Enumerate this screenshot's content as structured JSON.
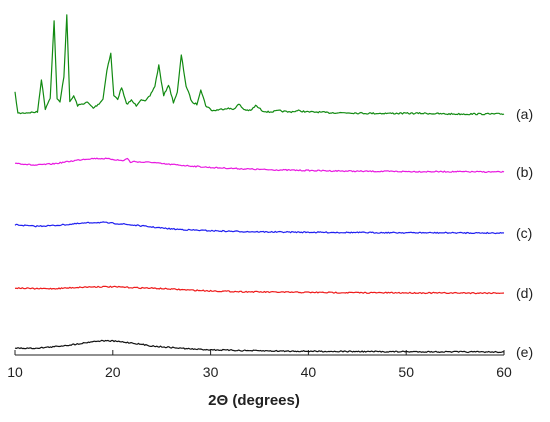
{
  "chart_data": {
    "type": "line",
    "xlabel": "2Θ (degrees)",
    "ylabel": "",
    "xlim": [
      10,
      60
    ],
    "xticks": [
      "10",
      "20",
      "30",
      "40",
      "50",
      "60"
    ],
    "grid": false,
    "legend": "none",
    "series": [
      {
        "name": "(a)",
        "color": "#128a12",
        "baseline": 0.92,
        "x": [
          10,
          10.3,
          12.3,
          12.7,
          13.1,
          13.6,
          14.0,
          14.3,
          14.6,
          15.0,
          15.3,
          15.6,
          16.0,
          16.4,
          16.8,
          17.4,
          18.0,
          18.6,
          19.0,
          19.4,
          19.8,
          20.1,
          20.5,
          20.9,
          21.4,
          21.9,
          22.4,
          22.9,
          23.3,
          23.8,
          24.3,
          24.7,
          25.2,
          25.7,
          26.2,
          26.6,
          27.0,
          27.5,
          28.1,
          28.6,
          29.0,
          29.5,
          30.2,
          31.0,
          31.7,
          32.3,
          32.9,
          33.4,
          34.1,
          34.6,
          35.3,
          36.0,
          37.0,
          38.0,
          39.0,
          40.0,
          41.0,
          42.0,
          44.0,
          46.0,
          48.0,
          50.0,
          52.0,
          54.0,
          56.0,
          58.0,
          60.0
        ],
        "y": [
          1.1,
          0.78,
          0.8,
          1.3,
          0.85,
          1.02,
          2.2,
          1.0,
          0.95,
          1.35,
          2.3,
          0.95,
          1.05,
          0.9,
          0.92,
          0.95,
          0.86,
          0.93,
          1.0,
          1.45,
          1.7,
          1.05,
          1.0,
          1.18,
          0.92,
          0.98,
          0.9,
          1.0,
          0.96,
          1.05,
          1.2,
          1.52,
          1.05,
          1.22,
          0.95,
          1.1,
          1.68,
          1.2,
          0.95,
          0.92,
          1.15,
          0.9,
          0.82,
          0.84,
          0.86,
          0.84,
          0.92,
          0.84,
          0.82,
          0.9,
          0.82,
          0.8,
          0.82,
          0.8,
          0.82,
          0.8,
          0.8,
          0.79,
          0.79,
          0.78,
          0.78,
          0.78,
          0.78,
          0.77,
          0.77,
          0.77,
          0.77
        ]
      },
      {
        "name": "(b)",
        "color": "#e81ae0",
        "baseline": 0.64,
        "x": [
          10,
          12,
          14,
          16,
          17,
          18,
          19,
          20,
          21,
          21.5,
          21.8,
          22.2,
          23,
          24,
          25,
          26,
          28,
          30,
          33,
          36,
          40,
          45,
          50,
          55,
          60
        ],
        "y": [
          0.66,
          0.645,
          0.655,
          0.675,
          0.685,
          0.69,
          0.69,
          0.685,
          0.675,
          0.69,
          0.665,
          0.67,
          0.665,
          0.665,
          0.655,
          0.65,
          0.64,
          0.63,
          0.622,
          0.615,
          0.61,
          0.605,
          0.603,
          0.602,
          0.6
        ]
      },
      {
        "name": "(c)",
        "color": "#1f1ff0",
        "baseline": 0.35,
        "x": [
          10,
          12,
          14,
          16,
          17,
          18,
          19,
          20,
          21,
          22,
          23,
          24,
          25,
          26,
          28,
          30,
          33,
          36,
          40,
          45,
          50,
          55,
          60
        ],
        "y": [
          0.38,
          0.37,
          0.375,
          0.385,
          0.39,
          0.395,
          0.395,
          0.39,
          0.385,
          0.378,
          0.372,
          0.365,
          0.358,
          0.352,
          0.345,
          0.34,
          0.335,
          0.332,
          0.33,
          0.328,
          0.327,
          0.326,
          0.325
        ]
      },
      {
        "name": "(d)",
        "color": "#ee1a1a",
        "baseline": 0.14,
        "x": [
          10,
          12,
          14,
          16,
          17,
          18,
          19,
          20,
          21,
          22,
          24,
          26,
          28,
          30,
          33,
          36,
          40,
          45,
          50,
          55,
          60
        ],
        "y": [
          0.16,
          0.155,
          0.155,
          0.162,
          0.165,
          0.167,
          0.168,
          0.167,
          0.165,
          0.162,
          0.158,
          0.152,
          0.145,
          0.14,
          0.135,
          0.132,
          0.13,
          0.128,
          0.127,
          0.126,
          0.126
        ]
      },
      {
        "name": "(e)",
        "color": "#111111",
        "baseline": 0.0,
        "x": [
          10,
          12,
          14,
          16,
          17,
          18,
          19,
          20,
          21,
          22,
          23,
          24,
          26,
          28,
          30,
          33,
          36,
          40,
          45,
          50,
          55,
          60
        ],
        "y": [
          0.03,
          0.03,
          0.04,
          0.055,
          0.065,
          0.075,
          0.08,
          0.078,
          0.072,
          0.065,
          0.055,
          0.045,
          0.035,
          0.025,
          0.02,
          0.015,
          0.012,
          0.01,
          0.008,
          0.007,
          0.006,
          0.005
        ]
      }
    ]
  }
}
